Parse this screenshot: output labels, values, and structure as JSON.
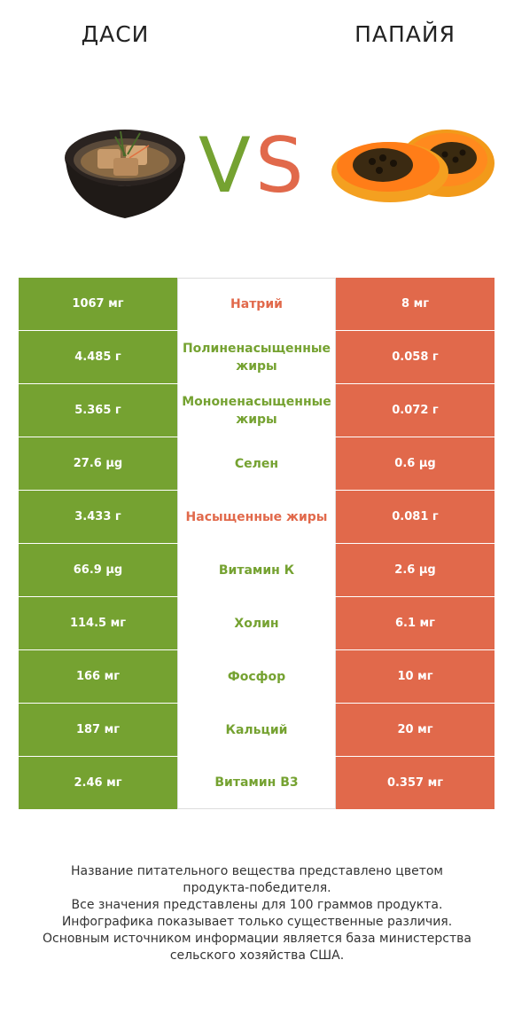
{
  "header": {
    "left_title": "ДАСИ",
    "right_title": "ПАПАЙЯ",
    "vs_text": "VS"
  },
  "colors": {
    "left_winner": "#75a231",
    "right_winner": "#e1694b"
  },
  "chart_data": {
    "type": "table",
    "columns": [
      "ДАСИ",
      "",
      "ПАПАЙЯ"
    ],
    "rows": [
      {
        "left": "1067 мг",
        "nutrient": "Натрий",
        "right": "8 мг",
        "winner": "right"
      },
      {
        "left": "4.485 г",
        "nutrient": "Полиненасыщенные жиры",
        "right": "0.058 г",
        "winner": "left"
      },
      {
        "left": "5.365 г",
        "nutrient": "Мононенасыщенные жиры",
        "right": "0.072 г",
        "winner": "left"
      },
      {
        "left": "27.6 µg",
        "nutrient": "Селен",
        "right": "0.6 µg",
        "winner": "left"
      },
      {
        "left": "3.433 г",
        "nutrient": "Насыщенные жиры",
        "right": "0.081 г",
        "winner": "right"
      },
      {
        "left": "66.9 µg",
        "nutrient": "Витамин К",
        "right": "2.6 µg",
        "winner": "left"
      },
      {
        "left": "114.5 мг",
        "nutrient": "Холин",
        "right": "6.1 мг",
        "winner": "left"
      },
      {
        "left": "166 мг",
        "nutrient": "Фосфор",
        "right": "10 мг",
        "winner": "left"
      },
      {
        "left": "187 мг",
        "nutrient": "Кальций",
        "right": "20 мг",
        "winner": "left"
      },
      {
        "left": "2.46 мг",
        "nutrient": "Витамин B3",
        "right": "0.357 мг",
        "winner": "left"
      }
    ]
  },
  "footer": {
    "line1": "Название питательного вещества представлено цветом",
    "line2": "продукта-победителя.",
    "line3": "Все значения представлены для 100 граммов продукта.",
    "line4": "Инфографика показывает только существенные различия.",
    "line5": "Основным источником информации является база министерства",
    "line6": "сельского хозяйства США."
  }
}
